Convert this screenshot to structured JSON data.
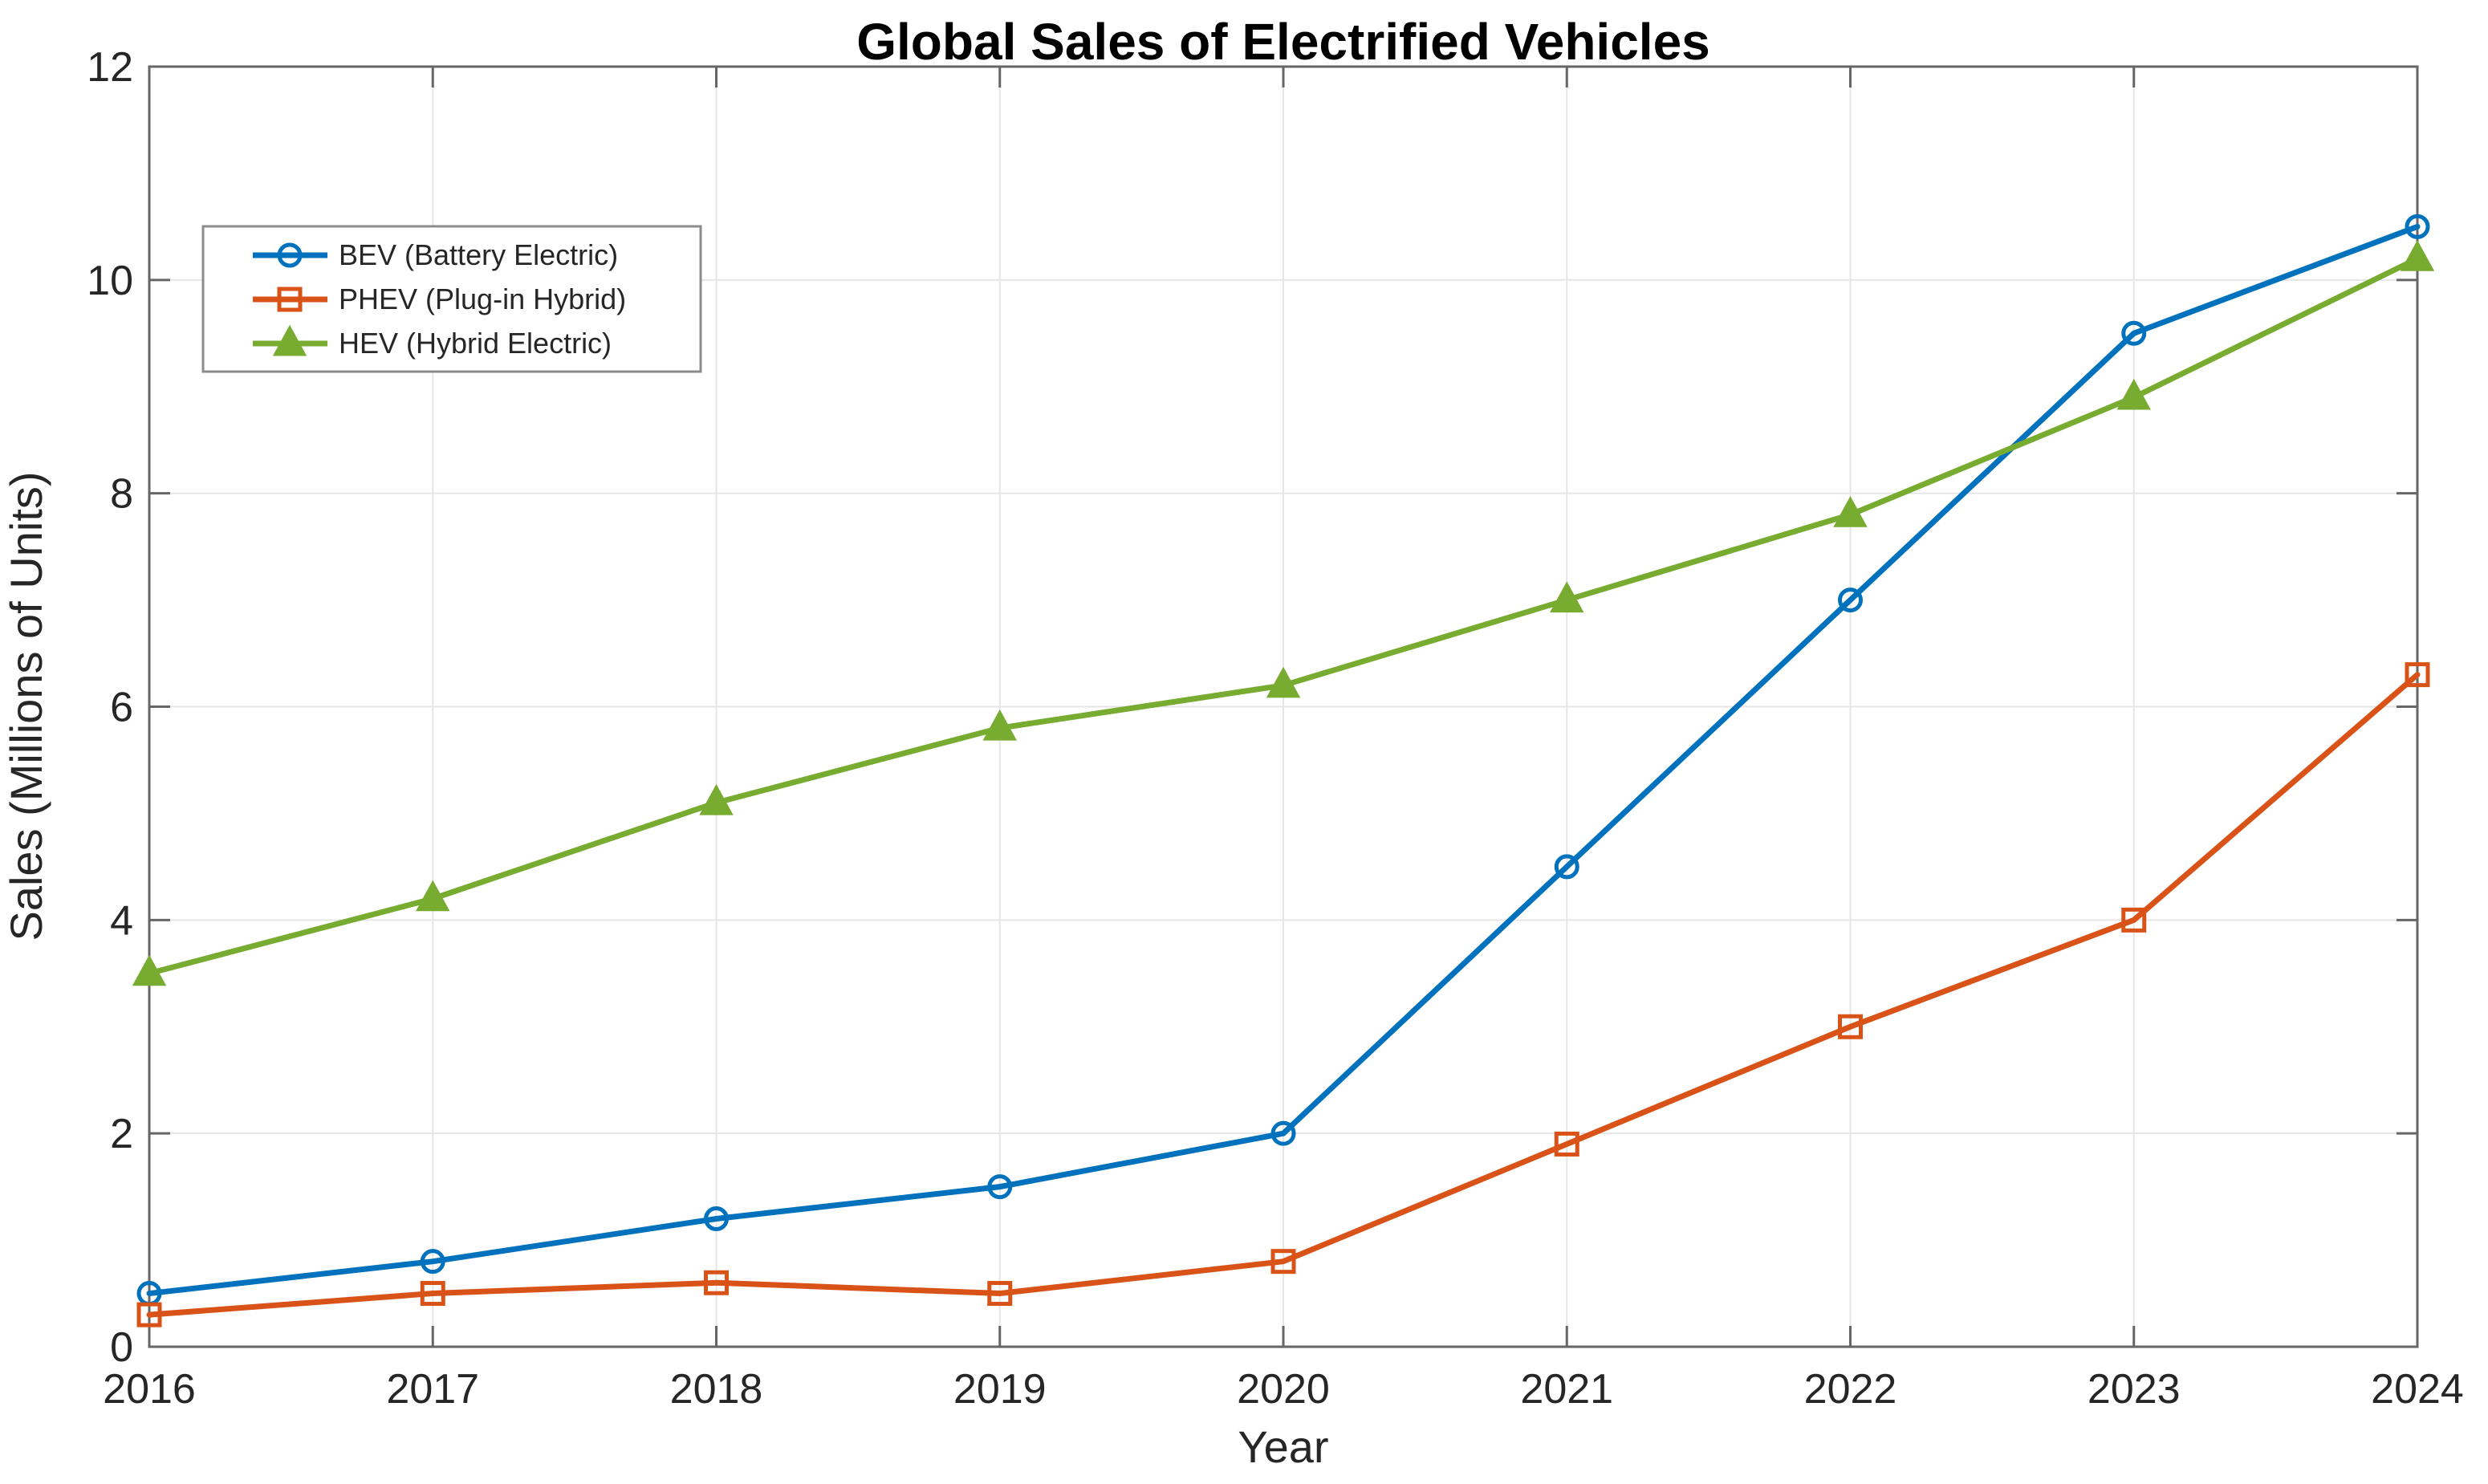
{
  "figure": {
    "background": "#FFFFFF"
  },
  "chart_data": {
    "type": "line",
    "title": "Global Sales of Electrified Vehicles",
    "xlabel": "Year",
    "ylabel": "Sales (Millions of Units)",
    "x": [
      2016,
      2017,
      2018,
      2019,
      2020,
      2021,
      2022,
      2023,
      2024
    ],
    "x_tick_labels": [
      "2016",
      "2017",
      "2018",
      "2019",
      "2020",
      "2021",
      "2022",
      "2023",
      "2024"
    ],
    "y_ticks": [
      0,
      2,
      4,
      6,
      8,
      10,
      12
    ],
    "y_tick_labels": [
      "0",
      "2",
      "4",
      "6",
      "8",
      "10",
      "12"
    ],
    "ylim": [
      0,
      12
    ],
    "grid": true,
    "legend": {
      "position": "top-left"
    },
    "series": [
      {
        "name": "BEV (Battery Electric)",
        "color": "#0072BD",
        "marker": "circle",
        "marker_style": "hollow",
        "values": [
          0.5,
          0.8,
          1.2,
          1.5,
          2.0,
          4.5,
          7.0,
          9.5,
          10.5
        ]
      },
      {
        "name": "PHEV (Plug-in Hybrid)",
        "color": "#D95319",
        "marker": "square",
        "marker_style": "hollow",
        "values": [
          0.3,
          0.5,
          0.6,
          0.5,
          0.8,
          1.9,
          3.0,
          4.0,
          6.3
        ]
      },
      {
        "name": "HEV (Hybrid Electric)",
        "color": "#77AC30",
        "marker": "triangle",
        "marker_style": "solid",
        "values": [
          3.5,
          4.2,
          5.1,
          5.8,
          6.2,
          7.0,
          7.8,
          8.9,
          10.2
        ]
      }
    ],
    "colors": {
      "axis": "#666666",
      "grid": "#E6E6E6",
      "tick_label": "#262626",
      "title": "#000000",
      "legend_border": "#8C8C8C",
      "legend_background": "#FFFFFF"
    }
  }
}
